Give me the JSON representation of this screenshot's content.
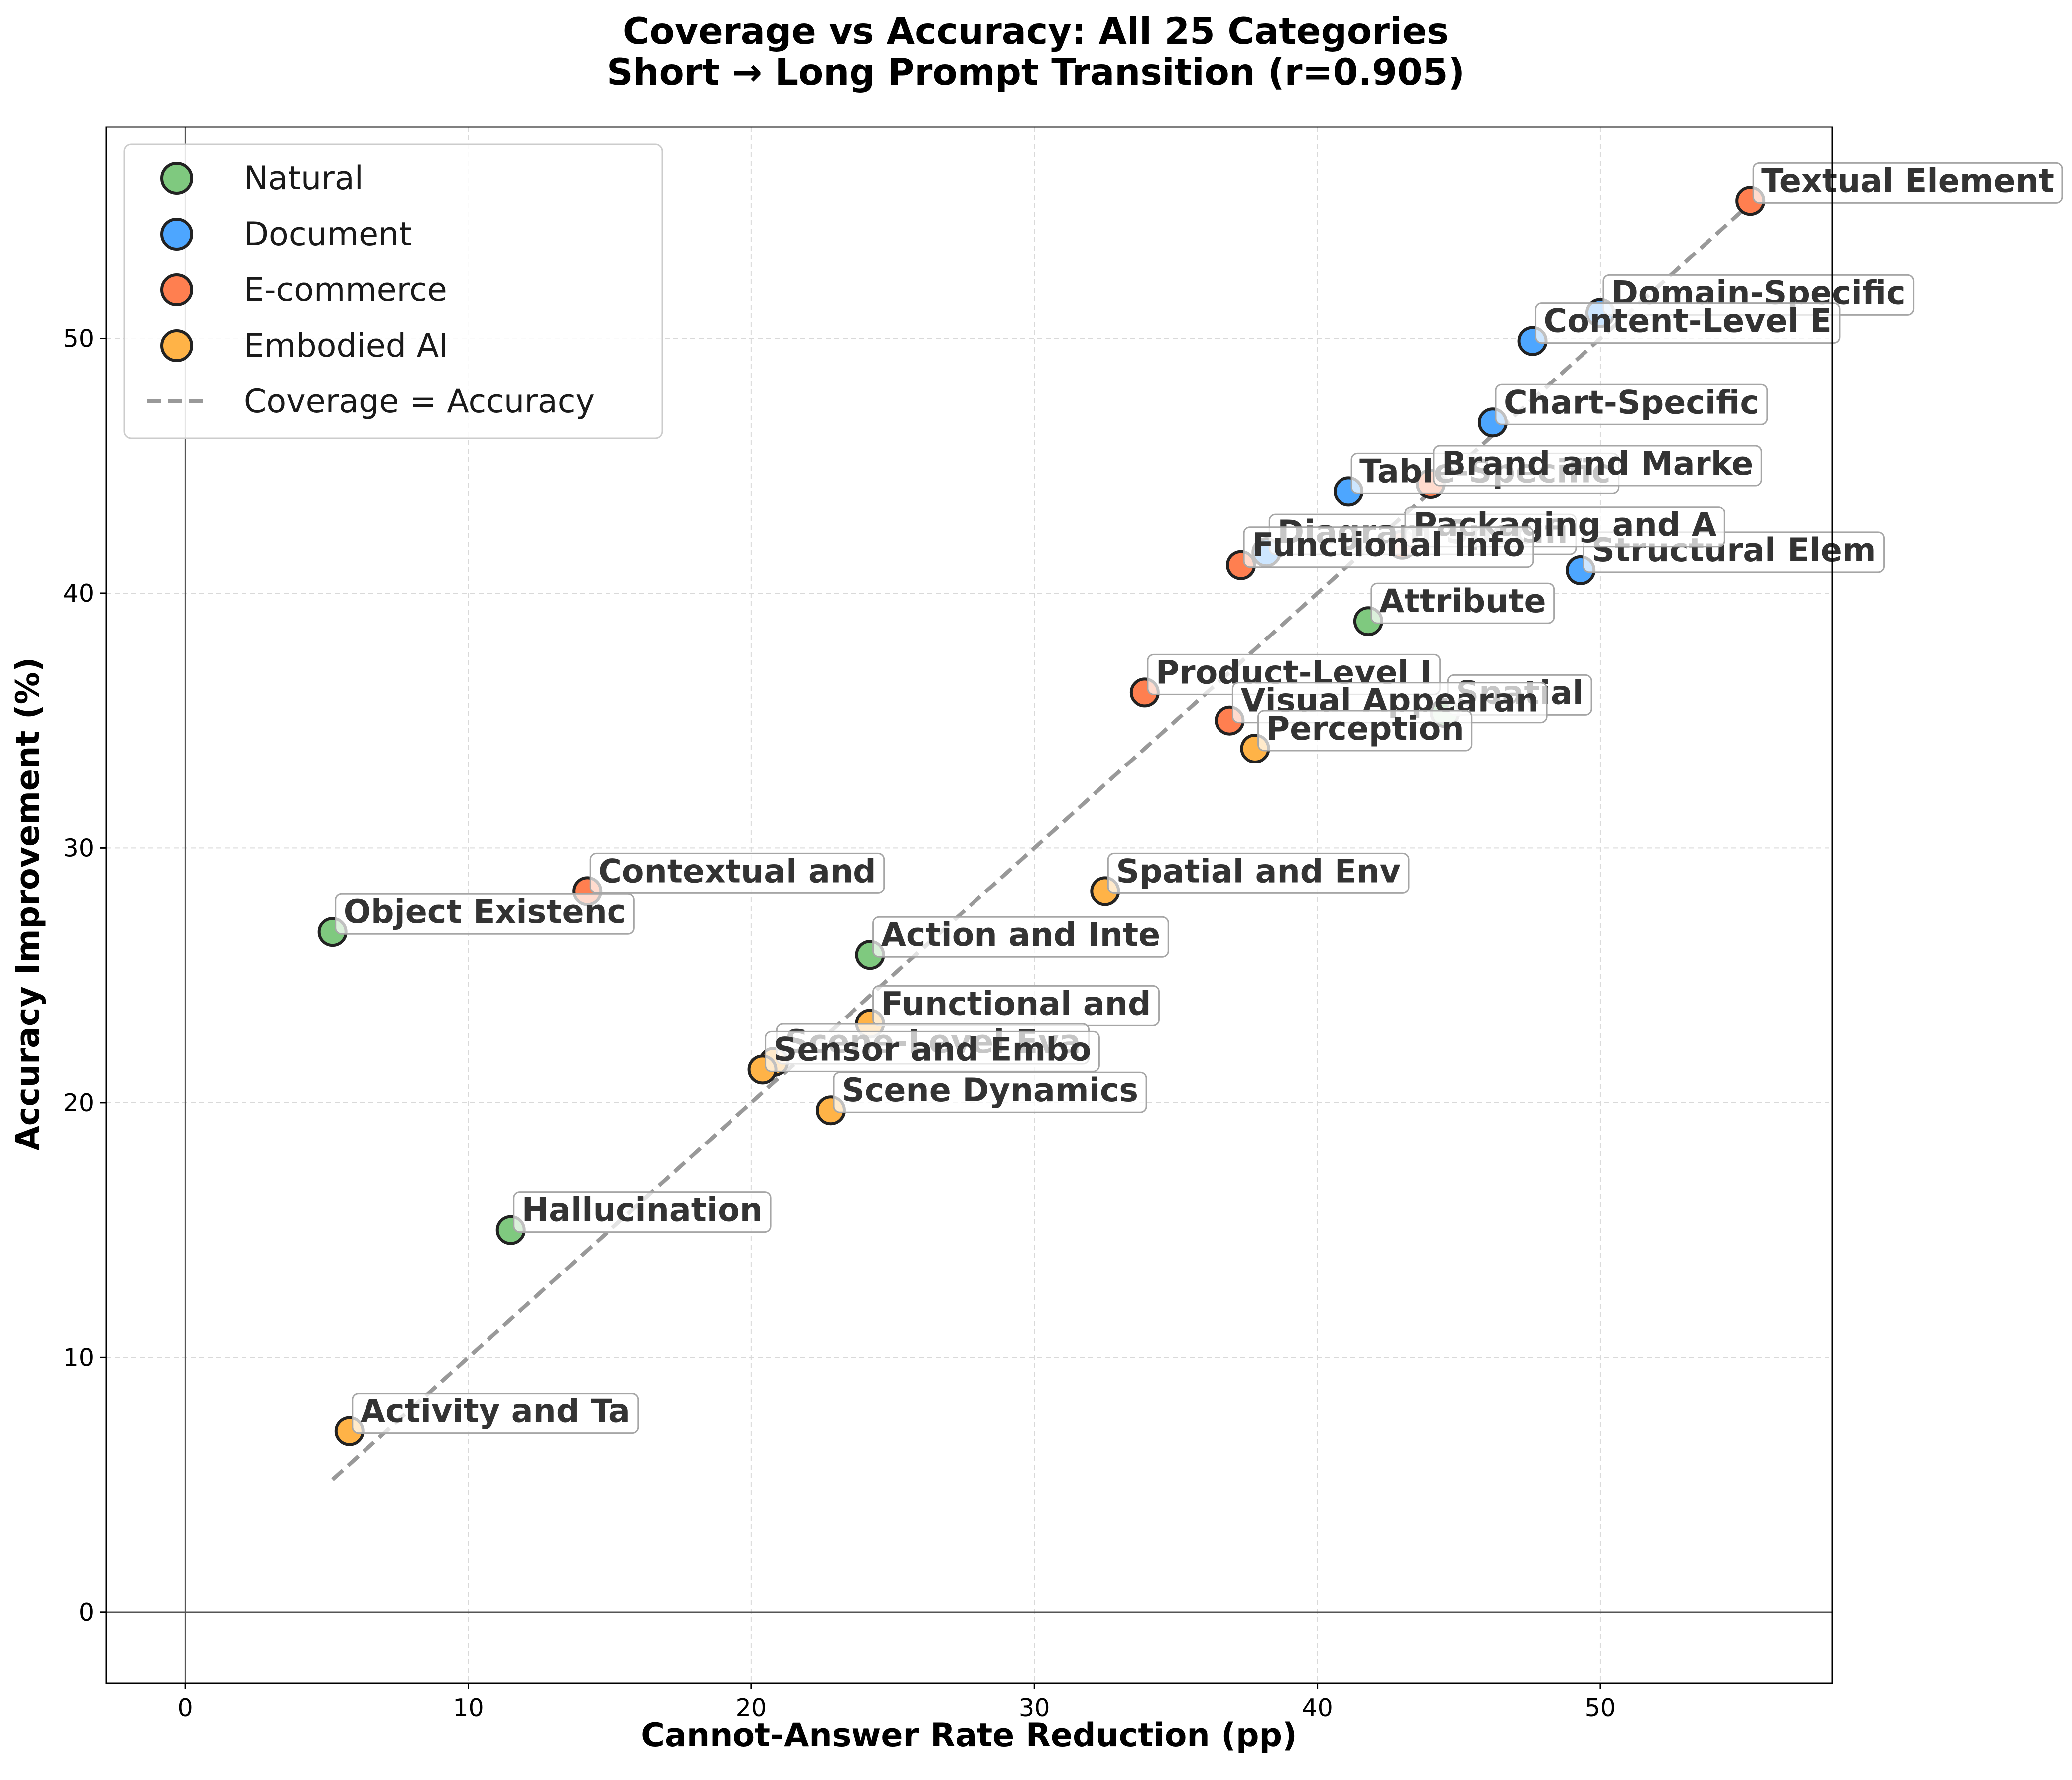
{
  "chart_data": {
    "type": "scatter",
    "title": "Coverage vs Accuracy: All 25 Categories",
    "subtitle": "Short → Long Prompt Transition (r=0.905)",
    "xlabel": "Cannot-Answer Rate Reduction (pp)",
    "ylabel": "Accuracy Improvement (%)",
    "xlim": [
      -2.8,
      58.2
    ],
    "ylim": [
      -2.8,
      58.3
    ],
    "xticks": [
      0,
      10,
      20,
      30,
      40,
      50
    ],
    "yticks": [
      0,
      10,
      20,
      30,
      40,
      50
    ],
    "grid": true,
    "legend_position": "upper-left",
    "reference_line": {
      "label": "Coverage = Accuracy",
      "color": "#999999",
      "x": [
        5.2,
        55.3
      ],
      "y": [
        5.2,
        55.3
      ]
    },
    "series": [
      {
        "name": "Natural",
        "color": "#7fc97f",
        "points": [
          {
            "label": "Attribute",
            "x": 41.8,
            "y": 38.9
          },
          {
            "label": "Object Existenc",
            "x": 5.2,
            "y": 26.7
          },
          {
            "label": "Action and Inte",
            "x": 24.2,
            "y": 25.8
          },
          {
            "label": "Hallucination",
            "x": 11.5,
            "y": 15.0
          },
          {
            "label": "Spatial",
            "x": 44.5,
            "y": 35.3
          }
        ]
      },
      {
        "name": "Document",
        "color": "#4da6ff",
        "points": [
          {
            "label": "Domain-Specific",
            "x": 50.0,
            "y": 51.0
          },
          {
            "label": "Content-Level E",
            "x": 47.6,
            "y": 49.9
          },
          {
            "label": "Chart-Specific",
            "x": 46.2,
            "y": 46.7
          },
          {
            "label": "Table-Specific",
            "x": 41.1,
            "y": 44.0
          },
          {
            "label": "Diagram-Specifi",
            "x": 38.2,
            "y": 41.6
          },
          {
            "label": "Structural Elem",
            "x": 49.3,
            "y": 40.9
          }
        ]
      },
      {
        "name": "E-commerce",
        "color": "#ff7f50",
        "points": [
          {
            "label": "Textual Element",
            "x": 55.3,
            "y": 55.4
          },
          {
            "label": "Brand and Marke",
            "x": 44.0,
            "y": 44.3
          },
          {
            "label": "Packaging and A",
            "x": 43.0,
            "y": 41.9
          },
          {
            "label": "Functional Info",
            "x": 37.3,
            "y": 41.1
          },
          {
            "label": "Product-Level I",
            "x": 33.9,
            "y": 36.1
          },
          {
            "label": "Visual Appearan",
            "x": 36.9,
            "y": 35.0
          },
          {
            "label": "Contextual and",
            "x": 14.2,
            "y": 28.3
          }
        ]
      },
      {
        "name": "Embodied AI",
        "color": "#ffb347",
        "points": [
          {
            "label": "Perception",
            "x": 37.8,
            "y": 33.9
          },
          {
            "label": "Spatial and Env",
            "x": 32.5,
            "y": 28.3
          },
          {
            "label": "Functional and",
            "x": 24.2,
            "y": 23.1
          },
          {
            "label": "Scene-Level Eva",
            "x": 20.8,
            "y": 21.6
          },
          {
            "label": "Sensor and Embo",
            "x": 20.4,
            "y": 21.3
          },
          {
            "label": "Scene Dynamics",
            "x": 22.8,
            "y": 19.7
          },
          {
            "label": "Activity and Ta",
            "x": 5.8,
            "y": 7.1
          }
        ]
      }
    ]
  }
}
